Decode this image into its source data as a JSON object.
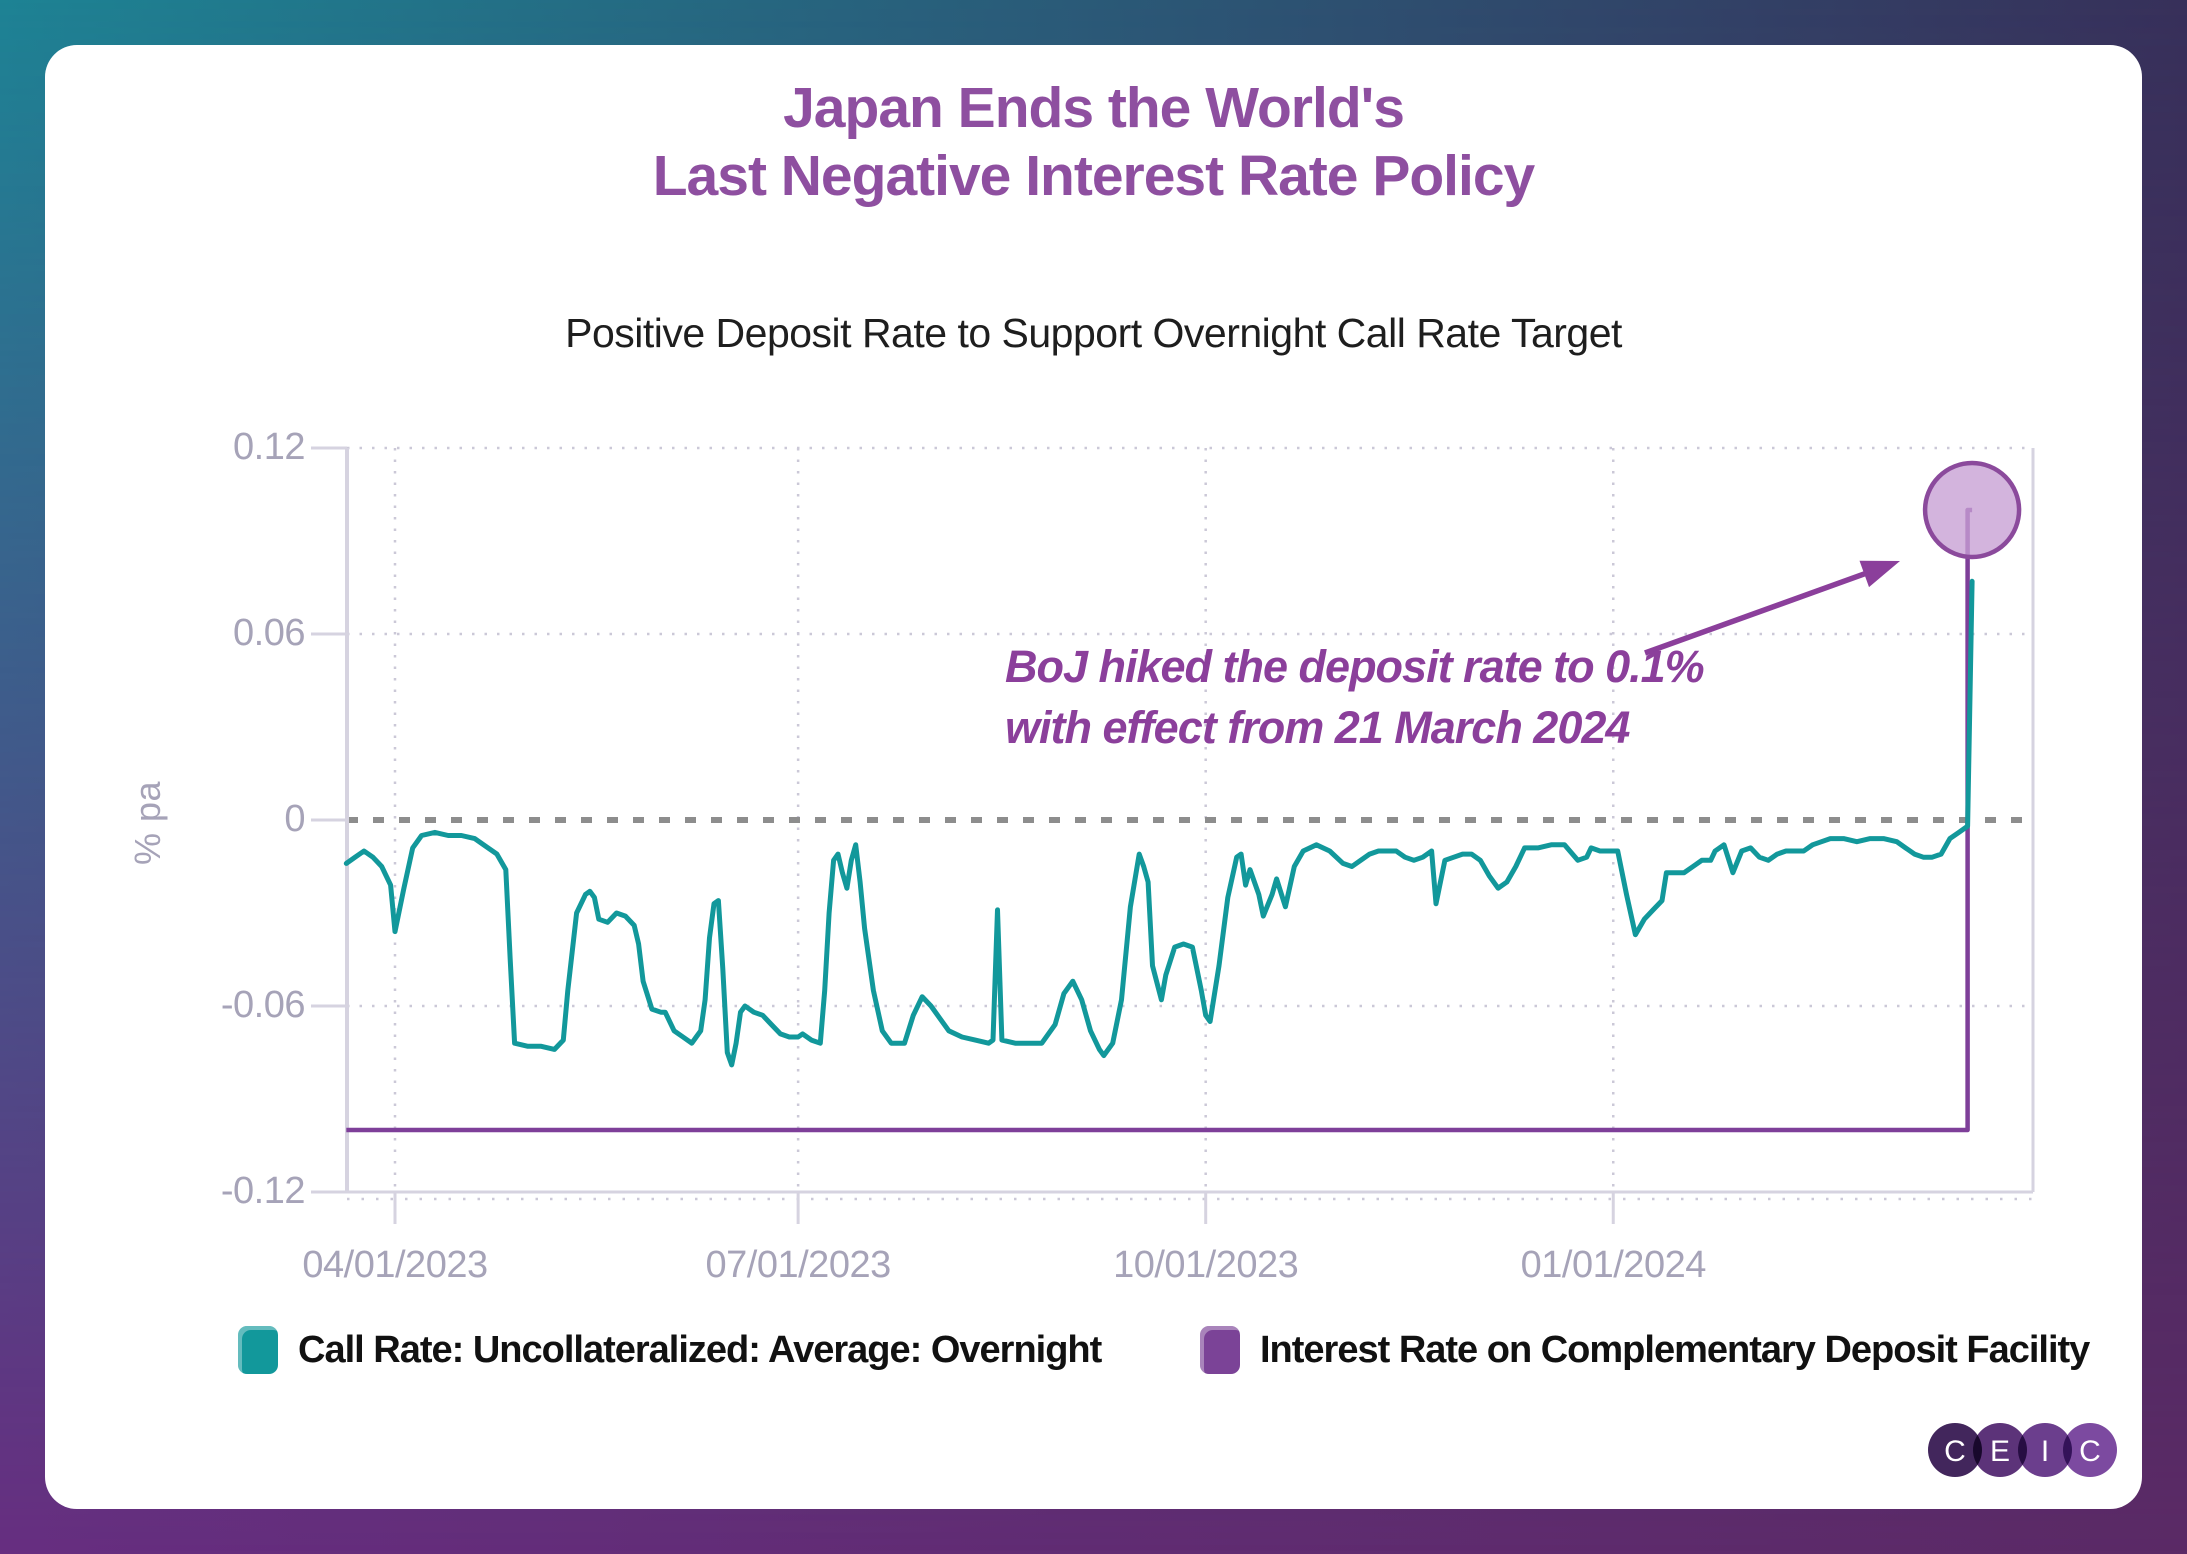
{
  "page": {
    "title_line1": "Japan Ends the World's",
    "title_line2": "Last Negative Interest Rate Policy",
    "subtitle": "Positive Deposit Rate to Support Overnight Call Rate Target"
  },
  "colors": {
    "title": "#8e4fa0",
    "annotation": "#8b3f9b",
    "call_rate_line": "#12989b",
    "deposit_rate_line": "#7e3f99",
    "highlight_circle_fill": "#c79fd3",
    "highlight_circle_stroke": "#8b4a9c",
    "axis_text": "#a6a3b8",
    "grid_dotted": "#cbc8d7",
    "zero_line": "#8d8d8d",
    "frame_top_left": "#1d8394",
    "frame_top_right": "#37305a",
    "frame_bottom_left": "#672e80",
    "frame_bottom_right": "#5b2a66"
  },
  "legend": {
    "items": [
      {
        "label": "Call Rate: Uncollateralized: Average: Overnight",
        "color": "#12989b"
      },
      {
        "label": "Interest Rate on Complementary Deposit Facility",
        "color": "#7b4397"
      }
    ]
  },
  "logo": {
    "letters": [
      "C",
      "E",
      "I",
      "C"
    ],
    "circle_colors": [
      "#42265c",
      "#5c3379",
      "#6b3e8d",
      "#7c4aa0"
    ]
  },
  "chart_data": {
    "type": "line",
    "title": "Japan Ends the World's Last Negative Interest Rate Policy",
    "subtitle": "Positive Deposit Rate to Support Overnight Call Rate Target",
    "ylabel": "% pa",
    "ylim": [
      -0.12,
      0.12
    ],
    "grid": "dotted",
    "zero_line_dashed": true,
    "legend_position": "bottom",
    "yticks": [
      {
        "value": 0.12,
        "label": "0.12"
      },
      {
        "value": 0.06,
        "label": "0.06"
      },
      {
        "value": 0,
        "label": "0"
      },
      {
        "value": -0.06,
        "label": "-0.06"
      },
      {
        "value": -0.12,
        "label": "-0.12"
      }
    ],
    "xticks": [
      {
        "date": "2023-04-01",
        "label": "04/01/2023"
      },
      {
        "date": "2023-07-01",
        "label": "07/01/2023"
      },
      {
        "date": "2023-10-01",
        "label": "10/01/2023"
      },
      {
        "date": "2024-01-01",
        "label": "01/01/2024"
      }
    ],
    "x_range": [
      "2023-03-21",
      "2024-04-05"
    ],
    "annotation": {
      "line1": "BoJ hiked the deposit rate to 0.1%",
      "line2": "with effect from 21 March 2024",
      "target_date": "2024-03-22",
      "target_value": 0.1
    },
    "series": [
      {
        "name": "Call Rate: Uncollateralized: Average: Overnight",
        "color": "#12989b",
        "points": [
          [
            "2023-03-21",
            -0.014
          ],
          [
            "2023-03-23",
            -0.012
          ],
          [
            "2023-03-25",
            -0.01
          ],
          [
            "2023-03-27",
            -0.012
          ],
          [
            "2023-03-29",
            -0.015
          ],
          [
            "2023-03-31",
            -0.021
          ],
          [
            "2023-04-01",
            -0.036
          ],
          [
            "2023-04-03",
            -0.022
          ],
          [
            "2023-04-05",
            -0.009
          ],
          [
            "2023-04-07",
            -0.005
          ],
          [
            "2023-04-10",
            -0.004
          ],
          [
            "2023-04-13",
            -0.005
          ],
          [
            "2023-04-16",
            -0.005
          ],
          [
            "2023-04-19",
            -0.006
          ],
          [
            "2023-04-21",
            -0.008
          ],
          [
            "2023-04-24",
            -0.011
          ],
          [
            "2023-04-26",
            -0.016
          ],
          [
            "2023-04-27",
            -0.045
          ],
          [
            "2023-04-28",
            -0.072
          ],
          [
            "2023-05-01",
            -0.073
          ],
          [
            "2023-05-04",
            -0.073
          ],
          [
            "2023-05-07",
            -0.074
          ],
          [
            "2023-05-09",
            -0.071
          ],
          [
            "2023-05-10",
            -0.055
          ],
          [
            "2023-05-12",
            -0.03
          ],
          [
            "2023-05-14",
            -0.024
          ],
          [
            "2023-05-15",
            -0.023
          ],
          [
            "2023-05-16",
            -0.025
          ],
          [
            "2023-05-17",
            -0.032
          ],
          [
            "2023-05-19",
            -0.033
          ],
          [
            "2023-05-21",
            -0.03
          ],
          [
            "2023-05-23",
            -0.031
          ],
          [
            "2023-05-25",
            -0.034
          ],
          [
            "2023-05-26",
            -0.04
          ],
          [
            "2023-05-27",
            -0.052
          ],
          [
            "2023-05-29",
            -0.061
          ],
          [
            "2023-05-31",
            -0.062
          ],
          [
            "2023-06-01",
            -0.062
          ],
          [
            "2023-06-03",
            -0.068
          ],
          [
            "2023-06-05",
            -0.07
          ],
          [
            "2023-06-07",
            -0.072
          ],
          [
            "2023-06-08",
            -0.07
          ],
          [
            "2023-06-09",
            -0.068
          ],
          [
            "2023-06-10",
            -0.058
          ],
          [
            "2023-06-11",
            -0.038
          ],
          [
            "2023-06-12",
            -0.027
          ],
          [
            "2023-06-13",
            -0.026
          ],
          [
            "2023-06-14",
            -0.048
          ],
          [
            "2023-06-15",
            -0.075
          ],
          [
            "2023-06-16",
            -0.079
          ],
          [
            "2023-06-17",
            -0.072
          ],
          [
            "2023-06-18",
            -0.062
          ],
          [
            "2023-06-19",
            -0.06
          ],
          [
            "2023-06-21",
            -0.062
          ],
          [
            "2023-06-23",
            -0.063
          ],
          [
            "2023-06-25",
            -0.066
          ],
          [
            "2023-06-27",
            -0.069
          ],
          [
            "2023-06-29",
            -0.07
          ],
          [
            "2023-07-01",
            -0.07
          ],
          [
            "2023-07-02",
            -0.069
          ],
          [
            "2023-07-04",
            -0.071
          ],
          [
            "2023-07-06",
            -0.072
          ],
          [
            "2023-07-07",
            -0.055
          ],
          [
            "2023-07-08",
            -0.03
          ],
          [
            "2023-07-09",
            -0.013
          ],
          [
            "2023-07-10",
            -0.011
          ],
          [
            "2023-07-11",
            -0.017
          ],
          [
            "2023-07-12",
            -0.022
          ],
          [
            "2023-07-13",
            -0.013
          ],
          [
            "2023-07-14",
            -0.008
          ],
          [
            "2023-07-15",
            -0.02
          ],
          [
            "2023-07-16",
            -0.035
          ],
          [
            "2023-07-18",
            -0.055
          ],
          [
            "2023-07-20",
            -0.068
          ],
          [
            "2023-07-22",
            -0.072
          ],
          [
            "2023-07-25",
            -0.072
          ],
          [
            "2023-07-27",
            -0.063
          ],
          [
            "2023-07-29",
            -0.057
          ],
          [
            "2023-07-31",
            -0.06
          ],
          [
            "2023-08-02",
            -0.064
          ],
          [
            "2023-08-04",
            -0.068
          ],
          [
            "2023-08-07",
            -0.07
          ],
          [
            "2023-08-10",
            -0.071
          ],
          [
            "2023-08-13",
            -0.072
          ],
          [
            "2023-08-14",
            -0.071
          ],
          [
            "2023-08-15",
            -0.029
          ],
          [
            "2023-08-16",
            -0.071
          ],
          [
            "2023-08-19",
            -0.072
          ],
          [
            "2023-08-22",
            -0.072
          ],
          [
            "2023-08-25",
            -0.072
          ],
          [
            "2023-08-28",
            -0.066
          ],
          [
            "2023-08-30",
            -0.056
          ],
          [
            "2023-09-01",
            -0.052
          ],
          [
            "2023-09-03",
            -0.058
          ],
          [
            "2023-09-05",
            -0.068
          ],
          [
            "2023-09-07",
            -0.074
          ],
          [
            "2023-09-08",
            -0.076
          ],
          [
            "2023-09-10",
            -0.072
          ],
          [
            "2023-09-12",
            -0.058
          ],
          [
            "2023-09-14",
            -0.028
          ],
          [
            "2023-09-16",
            -0.011
          ],
          [
            "2023-09-17",
            -0.015
          ],
          [
            "2023-09-18",
            -0.02
          ],
          [
            "2023-09-19",
            -0.047
          ],
          [
            "2023-09-21",
            -0.058
          ],
          [
            "2023-09-22",
            -0.05
          ],
          [
            "2023-09-24",
            -0.041
          ],
          [
            "2023-09-26",
            -0.04
          ],
          [
            "2023-09-28",
            -0.041
          ],
          [
            "2023-09-30",
            -0.055
          ],
          [
            "2023-10-01",
            -0.063
          ],
          [
            "2023-10-02",
            -0.065
          ],
          [
            "2023-10-04",
            -0.047
          ],
          [
            "2023-10-06",
            -0.025
          ],
          [
            "2023-10-08",
            -0.012
          ],
          [
            "2023-10-09",
            -0.011
          ],
          [
            "2023-10-10",
            -0.021
          ],
          [
            "2023-10-11",
            -0.016
          ],
          [
            "2023-10-13",
            -0.024
          ],
          [
            "2023-10-14",
            -0.031
          ],
          [
            "2023-10-16",
            -0.024
          ],
          [
            "2023-10-17",
            -0.019
          ],
          [
            "2023-10-19",
            -0.028
          ],
          [
            "2023-10-21",
            -0.015
          ],
          [
            "2023-10-23",
            -0.01
          ],
          [
            "2023-10-26",
            -0.008
          ],
          [
            "2023-10-29",
            -0.01
          ],
          [
            "2023-11-01",
            -0.014
          ],
          [
            "2023-11-03",
            -0.015
          ],
          [
            "2023-11-05",
            -0.013
          ],
          [
            "2023-11-07",
            -0.011
          ],
          [
            "2023-11-09",
            -0.01
          ],
          [
            "2023-11-11",
            -0.01
          ],
          [
            "2023-11-13",
            -0.01
          ],
          [
            "2023-11-15",
            -0.012
          ],
          [
            "2023-11-17",
            -0.013
          ],
          [
            "2023-11-19",
            -0.012
          ],
          [
            "2023-11-21",
            -0.01
          ],
          [
            "2023-11-22",
            -0.027
          ],
          [
            "2023-11-24",
            -0.013
          ],
          [
            "2023-11-26",
            -0.012
          ],
          [
            "2023-11-28",
            -0.011
          ],
          [
            "2023-11-30",
            -0.011
          ],
          [
            "2023-12-02",
            -0.013
          ],
          [
            "2023-12-04",
            -0.018
          ],
          [
            "2023-12-06",
            -0.022
          ],
          [
            "2023-12-08",
            -0.02
          ],
          [
            "2023-12-10",
            -0.015
          ],
          [
            "2023-12-12",
            -0.009
          ],
          [
            "2023-12-15",
            -0.009
          ],
          [
            "2023-12-18",
            -0.008
          ],
          [
            "2023-12-21",
            -0.008
          ],
          [
            "2023-12-24",
            -0.013
          ],
          [
            "2023-12-26",
            -0.012
          ],
          [
            "2023-12-27",
            -0.009
          ],
          [
            "2023-12-29",
            -0.01
          ],
          [
            "2023-12-31",
            -0.01
          ],
          [
            "2024-01-02",
            -0.01
          ],
          [
            "2024-01-04",
            -0.024
          ],
          [
            "2024-01-06",
            -0.037
          ],
          [
            "2024-01-08",
            -0.032
          ],
          [
            "2024-01-10",
            -0.029
          ],
          [
            "2024-01-12",
            -0.026
          ],
          [
            "2024-01-13",
            -0.017
          ],
          [
            "2024-01-15",
            -0.017
          ],
          [
            "2024-01-17",
            -0.017
          ],
          [
            "2024-01-19",
            -0.015
          ],
          [
            "2024-01-21",
            -0.013
          ],
          [
            "2024-01-23",
            -0.013
          ],
          [
            "2024-01-24",
            -0.01
          ],
          [
            "2024-01-26",
            -0.008
          ],
          [
            "2024-01-28",
            -0.017
          ],
          [
            "2024-01-30",
            -0.01
          ],
          [
            "2024-02-01",
            -0.009
          ],
          [
            "2024-02-03",
            -0.012
          ],
          [
            "2024-02-05",
            -0.013
          ],
          [
            "2024-02-07",
            -0.011
          ],
          [
            "2024-02-09",
            -0.01
          ],
          [
            "2024-02-11",
            -0.01
          ],
          [
            "2024-02-13",
            -0.01
          ],
          [
            "2024-02-15",
            -0.008
          ],
          [
            "2024-02-17",
            -0.007
          ],
          [
            "2024-02-19",
            -0.006
          ],
          [
            "2024-02-22",
            -0.006
          ],
          [
            "2024-02-25",
            -0.007
          ],
          [
            "2024-02-28",
            -0.006
          ],
          [
            "2024-03-02",
            -0.006
          ],
          [
            "2024-03-05",
            -0.007
          ],
          [
            "2024-03-07",
            -0.009
          ],
          [
            "2024-03-09",
            -0.011
          ],
          [
            "2024-03-11",
            -0.012
          ],
          [
            "2024-03-13",
            -0.012
          ],
          [
            "2024-03-15",
            -0.011
          ],
          [
            "2024-03-17",
            -0.006
          ],
          [
            "2024-03-19",
            -0.004
          ],
          [
            "2024-03-20",
            -0.003
          ],
          [
            "2024-03-21",
            -0.002
          ],
          [
            "2024-03-22",
            0.077
          ]
        ]
      },
      {
        "name": "Interest Rate on Complementary Deposit Facility",
        "color": "#7e3f99",
        "points": [
          [
            "2023-03-21",
            -0.1
          ],
          [
            "2024-03-21",
            -0.1
          ],
          [
            "2024-03-21",
            0.1
          ],
          [
            "2024-03-22",
            0.1
          ]
        ]
      }
    ]
  }
}
